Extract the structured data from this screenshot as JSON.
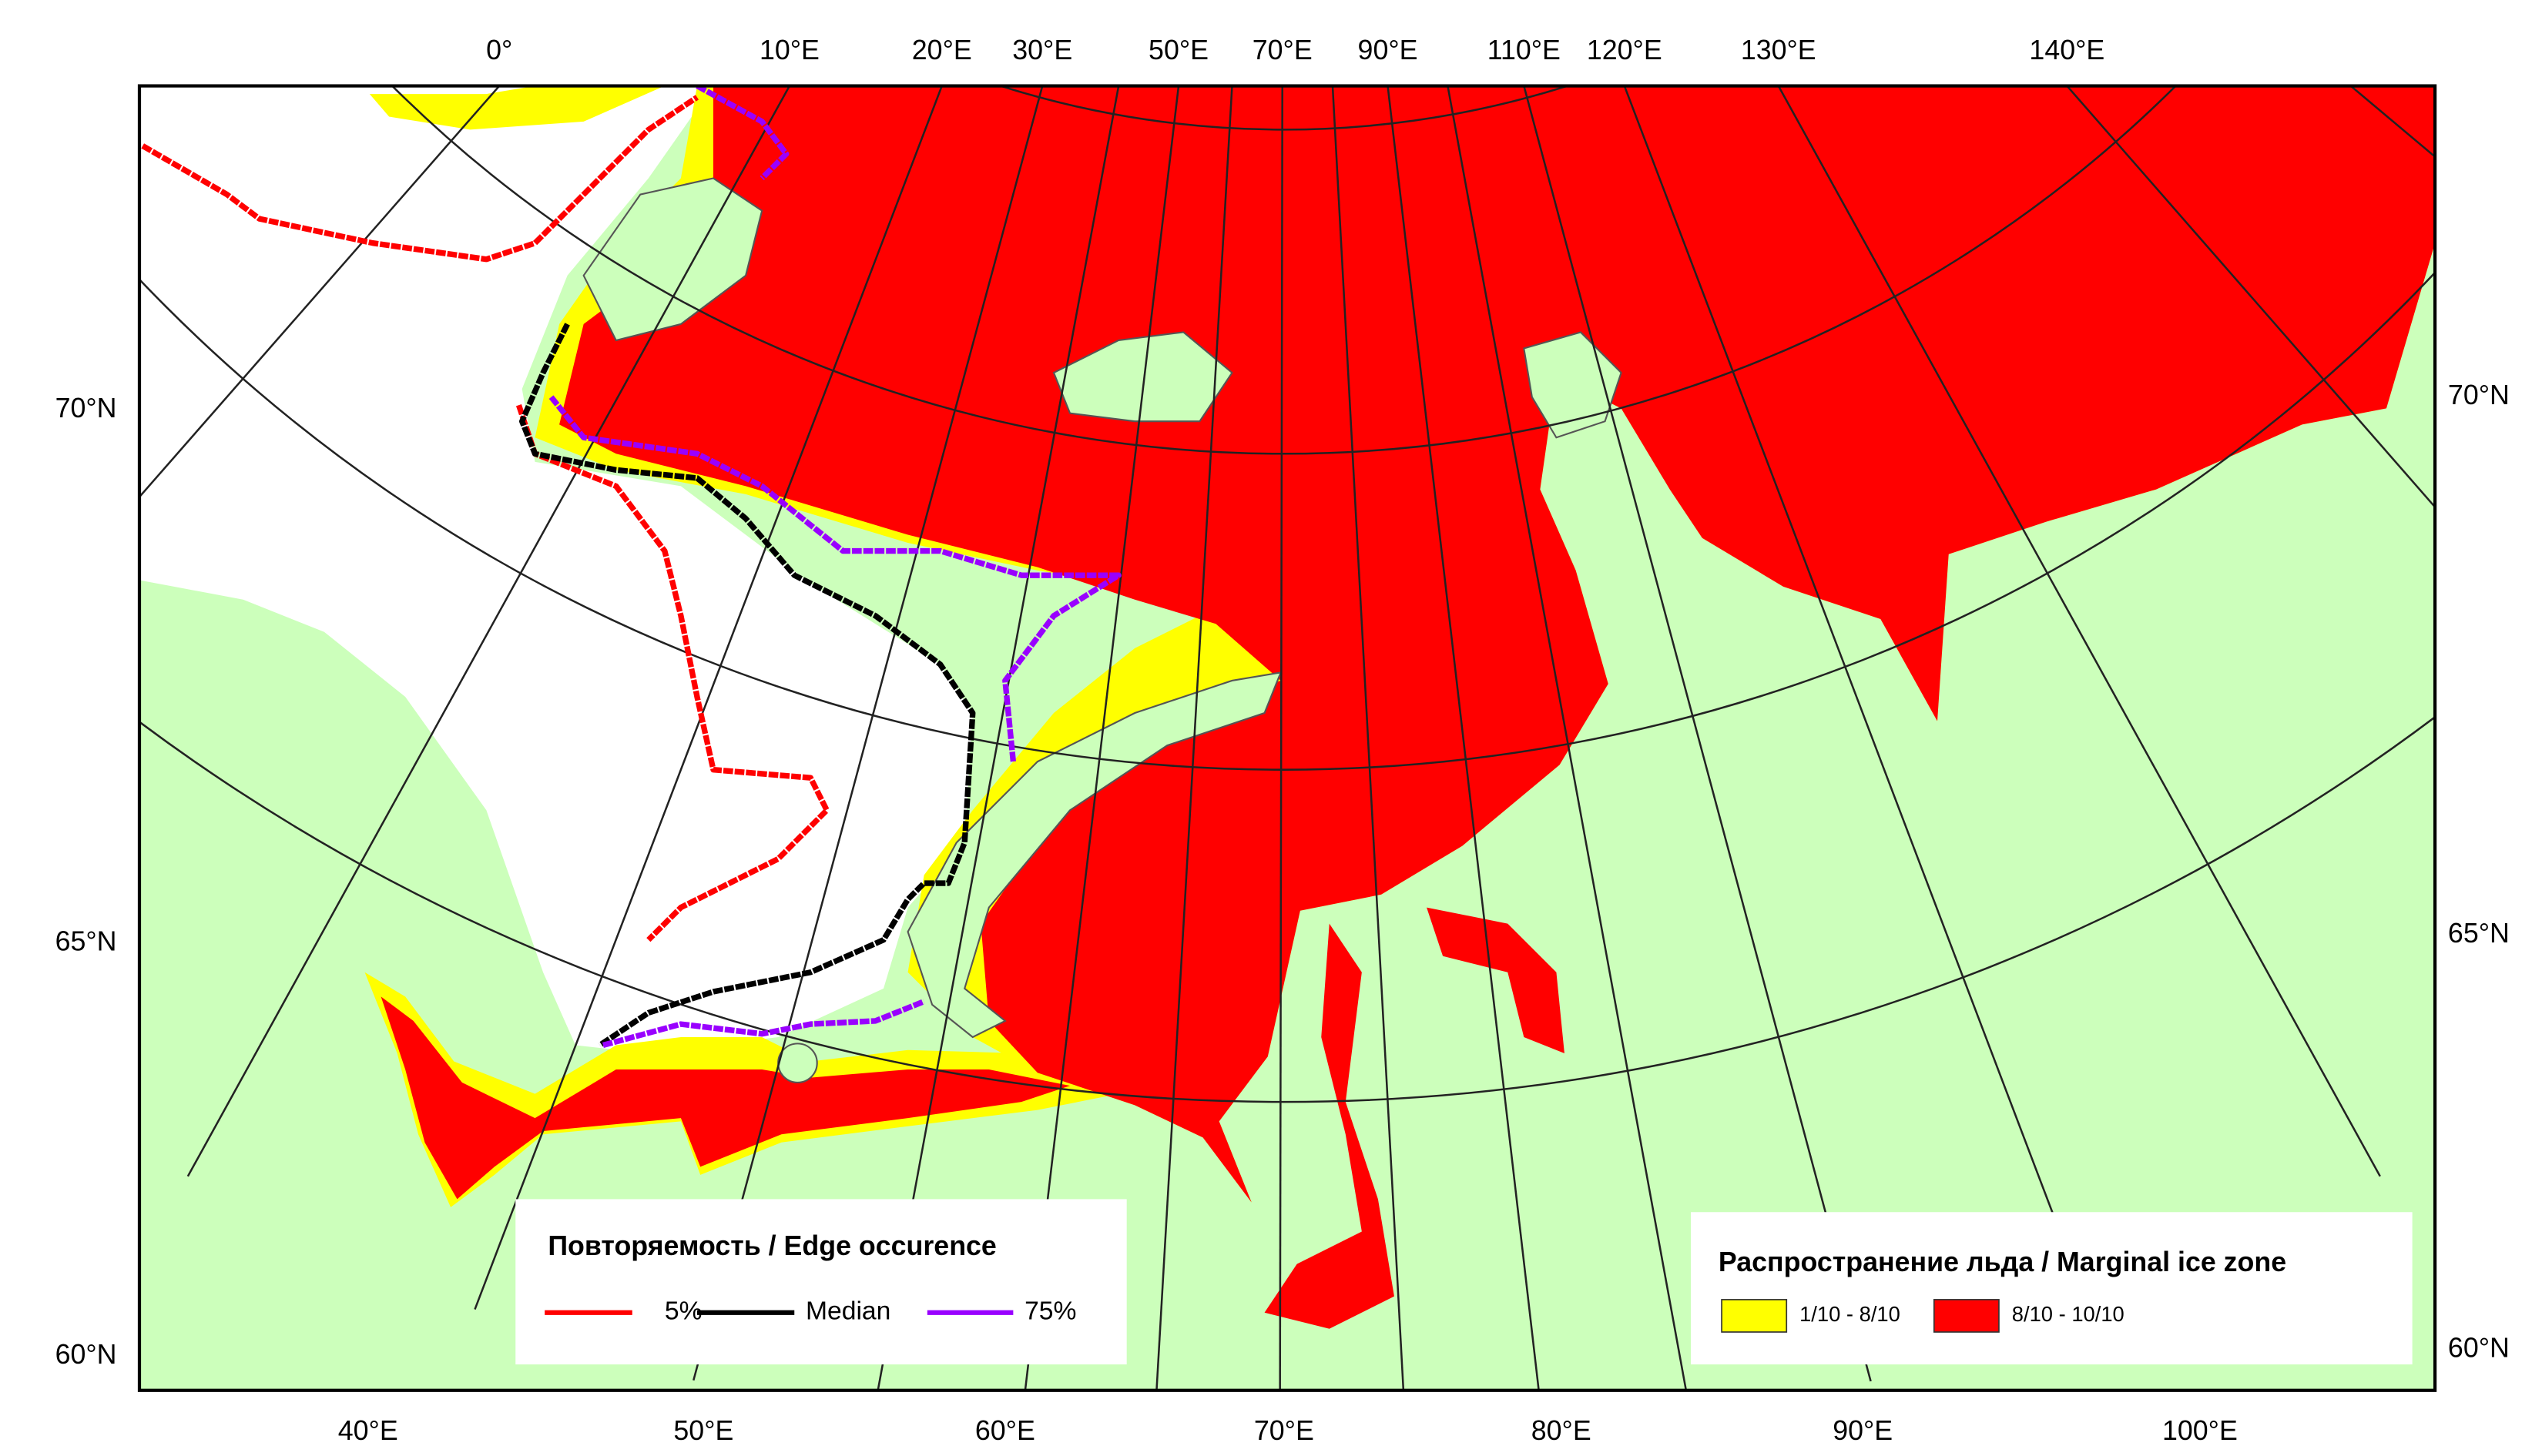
{
  "map": {
    "top_longitude_labels": [
      "0°",
      "10°E",
      "20°E",
      "30°E",
      "50°E",
      "70°E",
      "90°E",
      "110°E",
      "120°E",
      "130°E",
      "140°E"
    ],
    "bottom_longitude_labels": [
      "40°E",
      "50°E",
      "60°E",
      "70°E",
      "80°E",
      "90°E",
      "100°E"
    ],
    "left_latitude_labels": [
      "70°N",
      "65°N",
      "60°N"
    ],
    "right_latitude_labels": [
      "70°N",
      "65°N",
      "60°N"
    ],
    "edge_legend": {
      "title": "Повторяемость / Edge occurence",
      "items": [
        {
          "label": "5%",
          "color": "#ff0000"
        },
        {
          "label": "Median",
          "color": "#000000"
        },
        {
          "label": "75%",
          "color": "#9900ff"
        }
      ]
    },
    "ice_legend": {
      "title": "Распространение льда / Marginal ice zone",
      "items": [
        {
          "label": "1/10 - 8/10",
          "color": "#ffff00"
        },
        {
          "label": "8/10 - 10/10",
          "color": "#ff0000"
        }
      ]
    }
  }
}
